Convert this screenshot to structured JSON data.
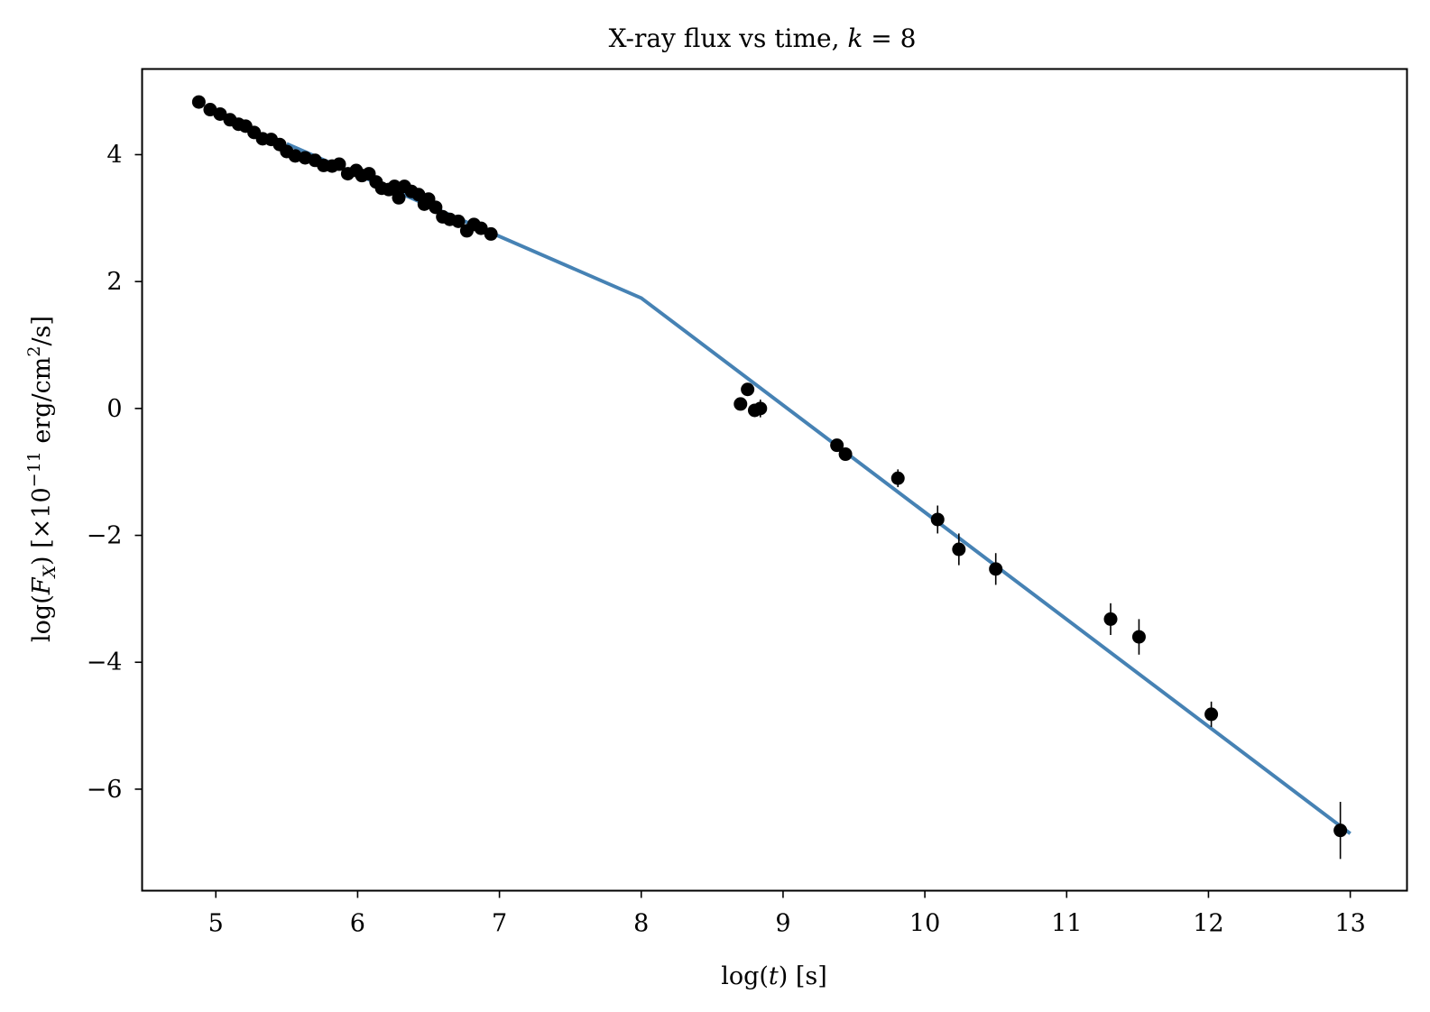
{
  "chart_data": {
    "type": "scatter",
    "title_parts": {
      "prefix": "X-ray flux vs time, ",
      "var": "k",
      "suffix": " = 8"
    },
    "xlabel": "log(t) [s]",
    "ylabel": "log(F_X) [×10^−11 erg/cm^2/s]",
    "xlabel_parts": {
      "prefix": "log(",
      "var": "t",
      "suffix": ") [s]"
    },
    "ylabel_parts": {
      "pre": "log(",
      "var": "F",
      "sub": "X",
      "mid": ") [×10",
      "sup1": "−11",
      "mid2": " erg/cm",
      "sup2": "2",
      "post": "/s]"
    },
    "xlim": [
      4.48,
      13.4
    ],
    "ylim": [
      -7.6,
      5.35
    ],
    "xticks": [
      5,
      6,
      7,
      8,
      9,
      10,
      11,
      12,
      13
    ],
    "yticks": [
      -6,
      -4,
      -2,
      0,
      2,
      4
    ],
    "xtick_labels": [
      "5",
      "6",
      "7",
      "8",
      "9",
      "10",
      "11",
      "12",
      "13"
    ],
    "ytick_labels": [
      "−6",
      "−4",
      "−2",
      "0",
      "2",
      "4"
    ],
    "grid": false,
    "colors": {
      "model": "#4682b4",
      "data": "#000000"
    },
    "series": [
      {
        "type": "line",
        "x": [
          5.5,
          8.0,
          13.0
        ],
        "y": [
          4.17,
          1.74,
          -6.7
        ]
      },
      {
        "type": "scatter",
        "x": [
          4.88,
          4.96,
          5.03,
          5.1,
          5.16,
          5.21,
          5.27,
          5.33,
          5.39,
          5.45,
          5.5,
          5.56,
          5.63,
          5.7,
          5.76,
          5.82,
          5.87,
          5.93,
          5.99,
          6.03,
          6.08,
          6.13,
          6.17,
          6.22,
          6.26,
          6.29,
          6.33,
          6.38,
          6.43,
          6.47,
          6.5,
          6.55,
          6.6,
          6.65,
          6.71,
          6.77,
          6.82,
          6.87,
          6.94,
          8.7,
          8.75,
          8.8,
          8.84,
          9.38,
          9.44,
          9.81,
          10.09,
          10.24,
          10.5,
          11.31,
          11.51,
          12.02,
          12.93
        ],
        "y": [
          4.83,
          4.71,
          4.64,
          4.55,
          4.48,
          4.45,
          4.35,
          4.25,
          4.24,
          4.16,
          4.05,
          3.98,
          3.95,
          3.91,
          3.83,
          3.82,
          3.85,
          3.7,
          3.75,
          3.67,
          3.7,
          3.57,
          3.47,
          3.45,
          3.5,
          3.32,
          3.5,
          3.42,
          3.37,
          3.22,
          3.3,
          3.17,
          3.02,
          2.98,
          2.95,
          2.8,
          2.9,
          2.84,
          2.75,
          0.07,
          0.3,
          -0.03,
          0.0,
          -0.58,
          -0.72,
          -1.1,
          -1.75,
          -2.22,
          -2.53,
          -3.32,
          -3.6,
          -4.82,
          -6.65
        ],
        "yerr": [
          0.05,
          0.05,
          0.05,
          0.05,
          0.05,
          0.05,
          0.05,
          0.05,
          0.05,
          0.05,
          0.05,
          0.05,
          0.05,
          0.05,
          0.05,
          0.05,
          0.05,
          0.05,
          0.05,
          0.05,
          0.05,
          0.05,
          0.05,
          0.05,
          0.05,
          0.05,
          0.05,
          0.05,
          0.05,
          0.05,
          0.05,
          0.05,
          0.05,
          0.05,
          0.05,
          0.05,
          0.05,
          0.05,
          0.05,
          0.08,
          0.1,
          0.1,
          0.14,
          0.08,
          0.08,
          0.14,
          0.22,
          0.25,
          0.25,
          0.25,
          0.28,
          0.2,
          0.45
        ]
      }
    ]
  }
}
